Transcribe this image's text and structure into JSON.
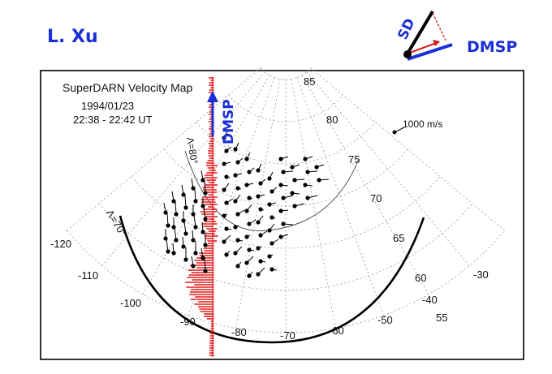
{
  "author": "L. Xu",
  "figure": {
    "title": "SuperDARN Velocity Map",
    "date": "1994/01/23",
    "time_range": "22:38 - 22:42 UT",
    "scale_label": "1000 m/s"
  },
  "annotations": {
    "sd": "SD",
    "dmsp_top": "DMSP",
    "dmsp_track": "DMSP",
    "lambda_80": "Λ=80°",
    "lambda_70": "Λ=70°"
  },
  "colors": {
    "ink": "#1a2fd6",
    "sd_line": "#000000",
    "dmsp_line": "#1a2fd6",
    "projection": "#d61a1a",
    "flow_trace": "#e21b1b",
    "vectors": "#000000",
    "grid": "#9a9a9a"
  },
  "grid": {
    "latitudes": [
      "85",
      "80",
      "75",
      "70",
      "65",
      "60",
      "55"
    ],
    "longitudes": [
      "-120",
      "-110",
      "-100",
      "-90",
      "-80",
      "-70",
      "-60",
      "-50",
      "-40",
      "-30"
    ]
  }
}
